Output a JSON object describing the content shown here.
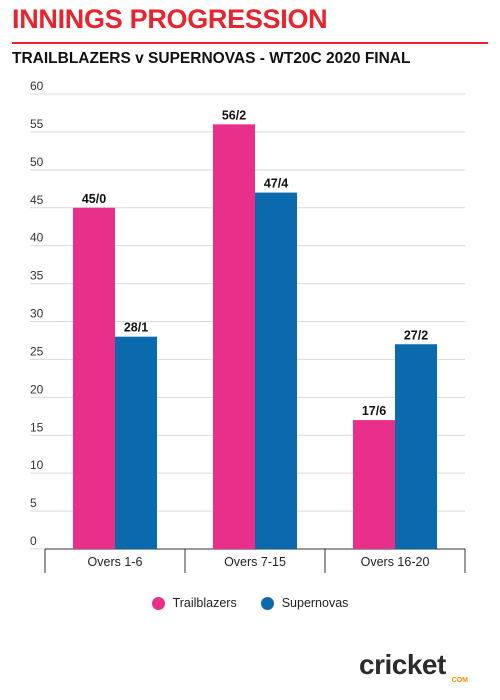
{
  "header": {
    "title": "INNINGS PROGRESSION",
    "subtitle": "TRAILBLAZERS v SUPERNOVAS - WT20C 2020 FINAL"
  },
  "colors": {
    "title": "#e8252e",
    "trailblazers": "#e8308a",
    "supernovas": "#0b6aad"
  },
  "chart_data": {
    "type": "bar",
    "categories": [
      "Overs 1-6",
      "Overs 7-15",
      "Overs 16-20"
    ],
    "series": [
      {
        "name": "Trailblazers",
        "values": [
          45,
          56,
          17
        ],
        "labels": [
          "45/0",
          "56/2",
          "17/6"
        ]
      },
      {
        "name": "Supernovas",
        "values": [
          28,
          47,
          27
        ],
        "labels": [
          "28/1",
          "47/4",
          "27/2"
        ]
      }
    ],
    "title": "INNINGS PROGRESSION",
    "subtitle": "TRAILBLAZERS v SUPERNOVAS - WT20C 2020 FINAL",
    "xlabel": "",
    "ylabel": "",
    "ylim": [
      0,
      60
    ],
    "yticks": [
      0,
      5,
      10,
      15,
      20,
      25,
      30,
      35,
      40,
      45,
      50,
      55,
      60
    ],
    "grid": true,
    "legend": "bottom-center"
  },
  "legend": {
    "items": [
      {
        "label": "Trailblazers",
        "color": "#e8308a"
      },
      {
        "label": "Supernovas",
        "color": "#0b6aad"
      }
    ]
  },
  "logo": {
    "text": "cricket",
    "sub": "COM",
    "icon": "cricket-logo"
  }
}
